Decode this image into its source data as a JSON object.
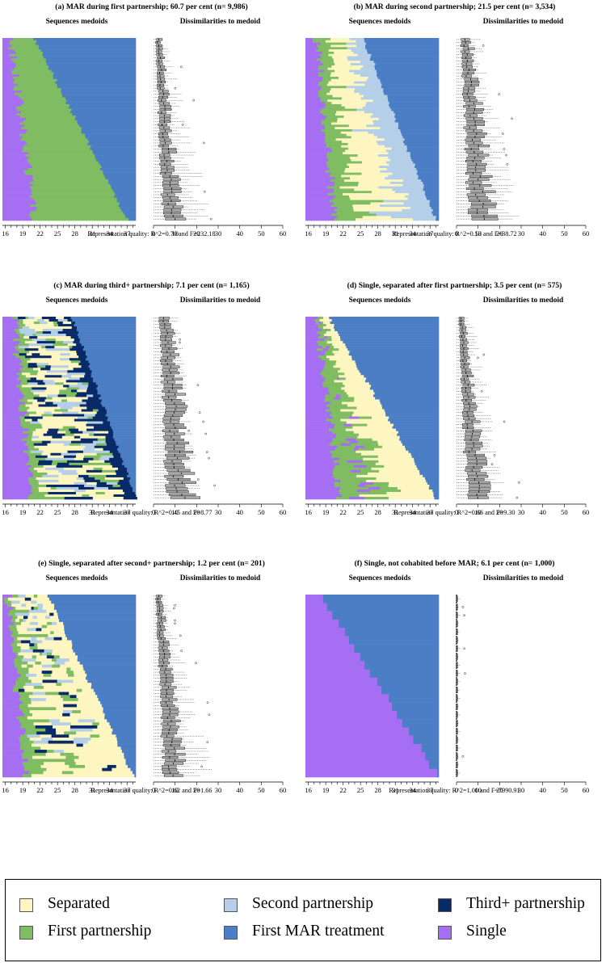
{
  "colors": {
    "Single": "#a66ef2",
    "First partnership": "#7fbc62",
    "Second partnership": "#b5cfe8",
    "Third+ partnership": "#082a66",
    "Separated": "#fdf6c0",
    "First MAR treatment": "#4b7ec4",
    "axis": "#000000",
    "box": "#aaaaaa"
  },
  "axis_common": {
    "seq_ticks": [
      "16",
      "19",
      "22",
      "25",
      "28",
      "31",
      "34",
      "37"
    ],
    "dis_ticks": [
      "0",
      "10",
      "20",
      "30",
      "40",
      "50",
      "60"
    ]
  },
  "panels": [
    {
      "title": "(a) MAR during first partnership; 60.7 per cent (n= 9,986)",
      "seq_label": "Sequences medoids",
      "dis_label": "Dissimilarities to medoid",
      "quality": "Representation quality: R^2=0.70 and F=232.18"
    },
    {
      "title": "(b) MAR during second partnership; 21.5 per cent (n= 3,534)",
      "seq_label": "Sequences medoids",
      "dis_label": "Dissimilarities to medoid",
      "quality": "Representation quality: R^2=0.53 and F=38.72"
    },
    {
      "title": "(c) MAR during third+ partnership; 7.1 per cent (n= 1,165)",
      "seq_label": "Sequences medoids",
      "dis_label": "Dissimilarities to medoid",
      "quality": "Representation quality: R^2=0.45 and F=8.77"
    },
    {
      "title": "(d) Single, separated after first partnership; 3.5 per cent (n= 575)",
      "seq_label": "Sequences medoids",
      "dis_label": "Dissimilarities to medoid",
      "quality": "Representation quality: R^2=0.66 and F=9.30"
    },
    {
      "title": "(e) Single, separated after second+ partnership; 1.2 per cent (n= 201)",
      "seq_label": "Sequences medoids",
      "dis_label": "Dissimilarities to medoid",
      "quality": "Representation quality: R^2=0.62 and F=1.66"
    },
    {
      "title": "(f) Single, not cohabited before MAR; 6.1 per cent (n= 1,000)",
      "seq_label": "Sequences medoids",
      "dis_label": "Dissimilarities to medoid",
      "quality": "Representation quality: R^2=1.00 and F=7990.91"
    }
  ],
  "legend": [
    {
      "label": "Separated",
      "state": "Separated"
    },
    {
      "label": "Second partnership",
      "state": "Second partnership"
    },
    {
      "label": "Third+ partnership",
      "state": "Third+ partnership"
    },
    {
      "label": "First partnership",
      "state": "First partnership"
    },
    {
      "label": "First MAR treatment",
      "state": "First MAR treatment"
    },
    {
      "label": "Single",
      "state": "Single"
    }
  ],
  "chart_data": [
    {
      "type": "sequence_index_and_boxplot",
      "panel": "a",
      "x_range": [
        16,
        39
      ],
      "dissimilarity_range": [
        0,
        60
      ],
      "states": [
        "Single",
        "First partnership",
        "First MAR treatment"
      ],
      "medoid_rows": 80,
      "single_end_age": {
        "first_row": 17.5,
        "last_row": 21.5
      },
      "mar_start_age": {
        "first_row": 21.5,
        "last_row": 37.5
      },
      "dissimilarity_median": {
        "first_row": 2,
        "last_row": 8
      },
      "dissimilarity_max": {
        "first_row": 6,
        "last_row": 29
      }
    },
    {
      "type": "sequence_index_and_boxplot",
      "panel": "b",
      "x_range": [
        16,
        39
      ],
      "dissimilarity_range": [
        0,
        60
      ],
      "states": [
        "Single",
        "First partnership",
        "Separated",
        "Second partnership",
        "First MAR treatment"
      ],
      "medoid_rows": 80,
      "single_end_age": {
        "first_row": 18,
        "last_row": 21
      },
      "mar_start_age": {
        "first_row": 26,
        "last_row": 38.5
      },
      "dissimilarity_median": {
        "first_row": 4,
        "last_row": 11
      },
      "dissimilarity_max": {
        "first_row": 12,
        "last_row": 30
      }
    },
    {
      "type": "sequence_index_and_boxplot",
      "panel": "c",
      "x_range": [
        16,
        39
      ],
      "dissimilarity_range": [
        0,
        60
      ],
      "states": [
        "Single",
        "First partnership",
        "Separated",
        "Second partnership",
        "Third+ partnership",
        "First MAR treatment"
      ],
      "medoid_rows": 75,
      "single_end_age": {
        "first_row": 18,
        "last_row": 21
      },
      "mar_start_age": {
        "first_row": 28,
        "last_row": 39
      },
      "dissimilarity_median": {
        "first_row": 5,
        "last_row": 12
      },
      "dissimilarity_max": {
        "first_row": 12,
        "last_row": 24
      }
    },
    {
      "type": "sequence_index_and_boxplot",
      "panel": "d",
      "x_range": [
        16,
        39
      ],
      "dissimilarity_range": [
        0,
        60
      ],
      "states": [
        "Single",
        "First partnership",
        "Separated",
        "First MAR treatment"
      ],
      "medoid_rows": 75,
      "single_end_age": {
        "first_row": 18,
        "last_row": 22
      },
      "mar_start_age": {
        "first_row": 20,
        "last_row": 38.5
      },
      "dissimilarity_median": {
        "first_row": 2,
        "last_row": 9
      },
      "dissimilarity_max": {
        "first_row": 8,
        "last_row": 24
      }
    },
    {
      "type": "sequence_index_and_boxplot",
      "panel": "e",
      "x_range": [
        16,
        39
      ],
      "dissimilarity_range": [
        0,
        60
      ],
      "states": [
        "Single",
        "First partnership",
        "Separated",
        "Second partnership",
        "Third+ partnership",
        "First MAR treatment"
      ],
      "medoid_rows": 60,
      "single_end_age": {
        "first_row": 17,
        "last_row": 20
      },
      "mar_start_age": {
        "first_row": 24,
        "last_row": 38.5
      },
      "dissimilarity_median": {
        "first_row": 2,
        "last_row": 9
      },
      "dissimilarity_max": {
        "first_row": 6,
        "last_row": 30
      }
    },
    {
      "type": "sequence_index_and_boxplot",
      "panel": "f",
      "x_range": [
        16,
        39
      ],
      "dissimilarity_range": [
        0,
        60
      ],
      "states": [
        "Single",
        "First MAR treatment"
      ],
      "medoid_rows": 22,
      "single_end_age": {
        "first_row": 19,
        "last_row": 38.5
      },
      "mar_start_age": {
        "first_row": 19,
        "last_row": 38.5
      },
      "dissimilarity_median": {
        "first_row": 0,
        "last_row": 0
      },
      "dissimilarity_max": {
        "first_row": 2,
        "last_row": 2
      }
    }
  ]
}
